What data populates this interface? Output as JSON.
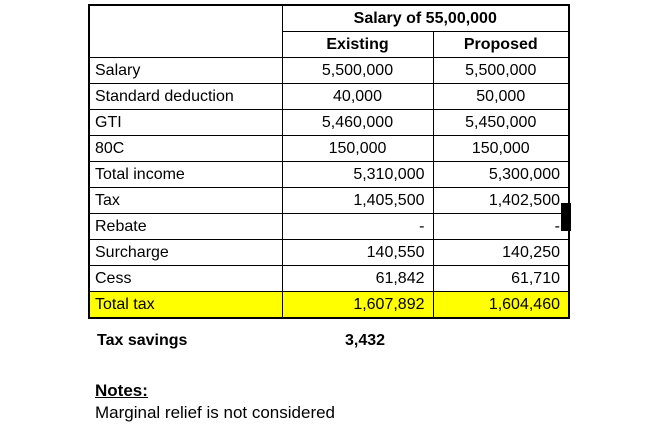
{
  "table": {
    "title": "Salary of 55,00,000",
    "columns": [
      "Existing",
      "Proposed"
    ],
    "rows": [
      {
        "label": "Salary",
        "existing": "5,500,000",
        "proposed": "5,500,000"
      },
      {
        "label": "Standard deduction",
        "existing": "40,000",
        "proposed": "50,000"
      },
      {
        "label": "GTI",
        "existing": "5,460,000",
        "proposed": "5,450,000"
      },
      {
        "label": "80C",
        "existing": "150,000",
        "proposed": "150,000"
      },
      {
        "label": "Total income",
        "existing": "5,310,000",
        "proposed": "5,300,000"
      },
      {
        "label": "Tax",
        "existing": "1,405,500",
        "proposed": "1,402,500"
      },
      {
        "label": "Rebate",
        "existing": "-",
        "proposed": "-"
      },
      {
        "label": "Surcharge",
        "existing": "140,550",
        "proposed": "140,250"
      },
      {
        "label": "Cess",
        "existing": "61,842",
        "proposed": "61,710"
      },
      {
        "label": "Total tax",
        "existing": "1,607,892",
        "proposed": "1,604,460"
      }
    ]
  },
  "summary": {
    "label": "Tax savings",
    "value": "3,432"
  },
  "notes": {
    "heading": "Notes:",
    "text": "Marginal relief is not considered"
  },
  "colors": {
    "highlight_row": "#ffff00",
    "border": "#000000",
    "text": "#000000",
    "background": "#ffffff"
  }
}
